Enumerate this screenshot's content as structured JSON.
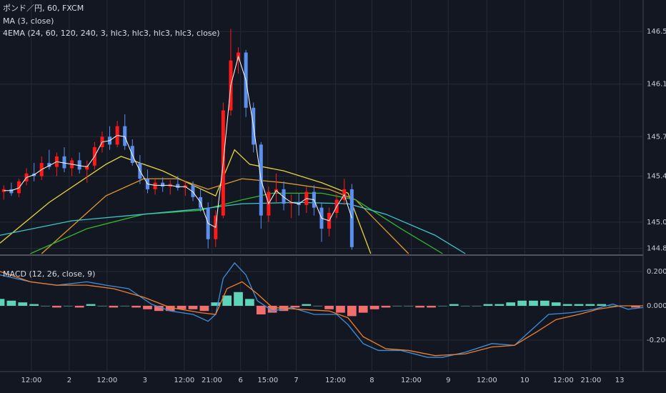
{
  "chart_data": [
    {
      "type": "candlestick",
      "title": "ポンド／円, 60, FXCM",
      "up_color": "#ff1a1a",
      "down_color": "#5b8ff0",
      "candles": {
        "x": [
          1,
          3,
          5,
          7,
          9,
          11,
          13,
          15,
          17,
          19,
          21,
          23,
          25,
          27,
          29,
          31,
          33,
          35,
          37,
          39,
          41,
          43,
          45,
          47,
          49,
          51,
          53,
          55,
          57,
          59,
          61,
          63,
          65,
          67,
          69,
          71,
          73,
          75,
          77,
          79,
          81,
          83,
          85,
          87,
          89,
          91,
          93
        ],
        "open": [
          145.28,
          145.3,
          145.27,
          145.36,
          145.42,
          145.4,
          145.5,
          145.47,
          145.55,
          145.46,
          145.52,
          145.45,
          145.48,
          145.62,
          145.7,
          145.64,
          145.78,
          145.63,
          145.5,
          145.38,
          145.3,
          145.35,
          145.32,
          145.34,
          145.31,
          145.33,
          145.24,
          145.16,
          144.92,
          145.1,
          145.9,
          146.28,
          146.34,
          145.92,
          145.64,
          145.1,
          145.28,
          145.3,
          145.19,
          145.2,
          145.18,
          145.28,
          145.16,
          145.0,
          145.12,
          145.22,
          145.3
        ],
        "high": [
          145.33,
          145.35,
          145.38,
          145.46,
          145.5,
          145.55,
          145.6,
          145.58,
          145.62,
          145.54,
          145.58,
          145.52,
          145.66,
          145.74,
          145.78,
          145.82,
          145.87,
          145.68,
          145.56,
          145.45,
          145.38,
          145.39,
          145.37,
          145.4,
          145.36,
          145.36,
          145.3,
          145.2,
          145.14,
          145.96,
          146.52,
          146.38,
          146.36,
          145.96,
          145.66,
          145.32,
          145.42,
          145.36,
          145.26,
          145.27,
          145.32,
          145.33,
          145.2,
          145.16,
          145.26,
          145.38,
          145.34
        ],
        "low": [
          145.22,
          145.25,
          145.24,
          145.33,
          145.36,
          145.37,
          145.45,
          145.4,
          145.43,
          145.4,
          145.42,
          145.35,
          145.45,
          145.58,
          145.6,
          145.62,
          145.6,
          145.48,
          145.34,
          145.27,
          145.26,
          145.28,
          145.26,
          145.29,
          145.25,
          145.21,
          145.13,
          144.85,
          144.86,
          145.08,
          145.86,
          146.18,
          145.85,
          145.58,
          145.0,
          145.05,
          145.2,
          145.14,
          145.08,
          145.1,
          145.12,
          145.1,
          144.9,
          144.94,
          145.08,
          145.18,
          144.84
        ],
        "close": [
          145.3,
          145.27,
          145.36,
          145.42,
          145.4,
          145.5,
          145.47,
          145.55,
          145.46,
          145.52,
          145.45,
          145.48,
          145.62,
          145.7,
          145.64,
          145.78,
          145.63,
          145.5,
          145.38,
          145.3,
          145.35,
          145.32,
          145.34,
          145.31,
          145.33,
          145.24,
          145.16,
          144.92,
          145.1,
          145.9,
          146.28,
          146.34,
          145.92,
          145.64,
          145.1,
          145.28,
          145.3,
          145.19,
          145.2,
          145.18,
          145.28,
          145.16,
          145.0,
          145.12,
          145.22,
          145.3,
          144.86
        ]
      },
      "ma": {
        "name": "MA (3, close)",
        "color": "#ffffff",
        "x": [
          1,
          3,
          5,
          7,
          9,
          11,
          13,
          15,
          17,
          19,
          21,
          23,
          25,
          27,
          29,
          31,
          33,
          35,
          37,
          39,
          41,
          43,
          45,
          47,
          49,
          51,
          53,
          55,
          57,
          59,
          61,
          63,
          65,
          67,
          69,
          71,
          73,
          75,
          77,
          79,
          81,
          83,
          85,
          87,
          89,
          91,
          93
        ],
        "values": [
          145.29,
          145.29,
          145.31,
          145.39,
          145.41,
          145.45,
          145.48,
          145.51,
          145.5,
          145.49,
          145.48,
          145.47,
          145.55,
          145.66,
          145.67,
          145.71,
          145.7,
          145.56,
          145.44,
          145.34,
          145.33,
          145.33,
          145.33,
          145.32,
          145.32,
          145.28,
          145.2,
          145.04,
          145.01,
          145.5,
          146.09,
          146.31,
          146.13,
          145.78,
          145.37,
          145.19,
          145.29,
          145.24,
          145.2,
          145.19,
          145.23,
          145.22,
          145.08,
          145.06,
          145.17,
          145.26,
          145.08
        ]
      },
      "ema": {
        "name": "4EMA (24, 60, 120, 240, 3, hlc3, hlc3, hlc3, hlc3, close)",
        "lines": [
          {
            "color": "#e8d33a",
            "x": [
              0,
              13,
              28,
              32,
              43,
              51,
              57,
              62,
              66,
              75,
              85,
              92,
              98
            ],
            "values": [
              144.89,
              145.2,
              145.49,
              145.55,
              145.44,
              145.33,
              145.25,
              145.6,
              145.49,
              145.44,
              145.35,
              145.27,
              144.81
            ]
          },
          {
            "color": "#e09a2a",
            "x": [
              11,
              28,
              38,
              47,
              55,
              64,
              75,
              87,
              94,
              108
            ],
            "values": [
              144.81,
              145.25,
              145.38,
              145.38,
              145.3,
              145.38,
              145.35,
              145.3,
              145.22,
              144.81
            ]
          },
          {
            "color": "#2fb82f",
            "x": [
              8,
              23,
              38,
              53,
              64,
              72,
              85,
              94,
              106,
              117
            ],
            "values": [
              144.81,
              145.0,
              145.11,
              145.14,
              145.22,
              145.27,
              145.27,
              145.22,
              145.0,
              144.81
            ]
          },
          {
            "color": "#3cc6c6",
            "x": [
              0,
              19,
              38,
              53,
              64,
              79,
              92,
              102,
              115,
              123
            ],
            "values": [
              144.95,
              145.06,
              145.11,
              145.15,
              145.19,
              145.2,
              145.19,
              145.11,
              144.95,
              144.81
            ]
          }
        ]
      },
      "xlim": [
        0,
        170
      ],
      "ylim": [
        144.81,
        146.74
      ],
      "yticks": [
        {
          "value": 146.5,
          "label": "146.500"
        },
        {
          "value": 146.1,
          "label": "146.100"
        },
        {
          "value": 145.7,
          "label": "145.700"
        },
        {
          "value": 145.4,
          "label": "145.400"
        },
        {
          "value": 145.05,
          "label": "145.050"
        },
        {
          "value": 144.85,
          "label": "144.850"
        }
      ],
      "grid": true
    },
    {
      "type": "macd",
      "title": "MACD (12, 26, close, 9)",
      "macd": {
        "color": "#3b8fe0",
        "x": [
          0,
          8,
          15,
          23,
          28,
          34,
          40,
          45,
          51,
          55,
          57,
          59,
          62,
          65,
          68,
          72,
          77,
          83,
          89,
          92,
          96,
          100,
          106,
          113,
          117,
          123,
          130,
          136,
          140,
          145,
          151,
          157,
          162,
          166,
          170
        ],
        "values": [
          0.18,
          0.14,
          0.12,
          0.14,
          0.12,
          0.1,
          0.01,
          -0.03,
          -0.05,
          -0.09,
          -0.05,
          0.16,
          0.25,
          0.18,
          0.03,
          -0.03,
          -0.01,
          -0.05,
          -0.05,
          -0.11,
          -0.22,
          -0.26,
          -0.26,
          -0.3,
          -0.3,
          -0.27,
          -0.22,
          -0.23,
          -0.15,
          -0.05,
          -0.04,
          -0.02,
          0.01,
          -0.02,
          -0.01
        ]
      },
      "signal": {
        "color": "#f07f2a",
        "x": [
          0,
          8,
          15,
          23,
          30,
          38,
          45,
          53,
          57,
          60,
          64,
          68,
          72,
          79,
          87,
          92,
          96,
          102,
          108,
          115,
          123,
          130,
          136,
          142,
          147,
          153,
          158,
          164,
          170
        ],
        "values": [
          0.2,
          0.14,
          0.12,
          0.12,
          0.1,
          0.05,
          -0.01,
          -0.04,
          -0.05,
          0.1,
          0.14,
          0.07,
          -0.01,
          -0.02,
          -0.03,
          -0.07,
          -0.18,
          -0.25,
          -0.26,
          -0.29,
          -0.28,
          -0.24,
          -0.23,
          -0.15,
          -0.08,
          -0.05,
          -0.02,
          0.0,
          0.0
        ]
      },
      "histogram": {
        "positive_color": "#5fd3b8",
        "negative_color": "#f26d6d",
        "x": [
          0,
          3,
          6,
          9,
          12,
          15,
          18,
          21,
          24,
          27,
          30,
          33,
          36,
          39,
          42,
          45,
          48,
          51,
          54,
          57,
          60,
          63,
          66,
          69,
          72,
          75,
          78,
          81,
          84,
          87,
          90,
          93,
          96,
          99,
          102,
          105,
          108,
          111,
          114,
          117,
          120,
          123,
          126,
          129,
          132,
          135,
          138,
          141,
          144,
          147,
          150,
          153,
          156,
          159,
          162,
          165,
          168
        ],
        "values": [
          0.04,
          0.03,
          0.02,
          0.01,
          0.0,
          -0.01,
          0.0,
          -0.01,
          0.01,
          0.0,
          -0.01,
          0.0,
          -0.01,
          -0.02,
          -0.03,
          -0.03,
          -0.02,
          -0.02,
          -0.03,
          0.02,
          0.06,
          0.08,
          0.04,
          -0.05,
          -0.04,
          -0.03,
          -0.01,
          0.01,
          0.0,
          -0.02,
          -0.04,
          -0.06,
          -0.04,
          -0.02,
          -0.01,
          0.0,
          0.0,
          -0.01,
          -0.01,
          0.0,
          0.01,
          0.0,
          0.0,
          0.01,
          0.01,
          0.02,
          0.03,
          0.03,
          0.03,
          0.02,
          0.01,
          0.01,
          0.01,
          0.01,
          0.0,
          0.0,
          -0.01
        ]
      },
      "xlim": [
        0,
        170
      ],
      "ylim": [
        -0.383,
        0.283
      ],
      "yticks": [
        {
          "value": 0.2,
          "label": "0.200"
        },
        {
          "value": 0,
          "label": "0.000"
        },
        {
          "value": -0.2,
          "label": "-0.200"
        }
      ],
      "xticks": [
        {
          "value": 8.3,
          "label": "12:00"
        },
        {
          "value": 18.3,
          "label": "2"
        },
        {
          "value": 28.3,
          "label": "12:00"
        },
        {
          "value": 38.3,
          "label": "3"
        },
        {
          "value": 48.7,
          "label": "12:00"
        },
        {
          "value": 56,
          "label": "21:00"
        },
        {
          "value": 63.6,
          "label": "6"
        },
        {
          "value": 70.8,
          "label": "15:00"
        },
        {
          "value": 78.3,
          "label": "7"
        },
        {
          "value": 88.7,
          "label": "12:00"
        },
        {
          "value": 98.3,
          "label": "8"
        },
        {
          "value": 108.7,
          "label": "12:00"
        },
        {
          "value": 118.5,
          "label": "9"
        },
        {
          "value": 128.7,
          "label": "12:00"
        },
        {
          "value": 138.7,
          "label": "10"
        },
        {
          "value": 148.9,
          "label": "12:00"
        },
        {
          "value": 156.2,
          "label": "21:00"
        },
        {
          "value": 163.8,
          "label": "13"
        }
      ],
      "grid": true
    }
  ]
}
